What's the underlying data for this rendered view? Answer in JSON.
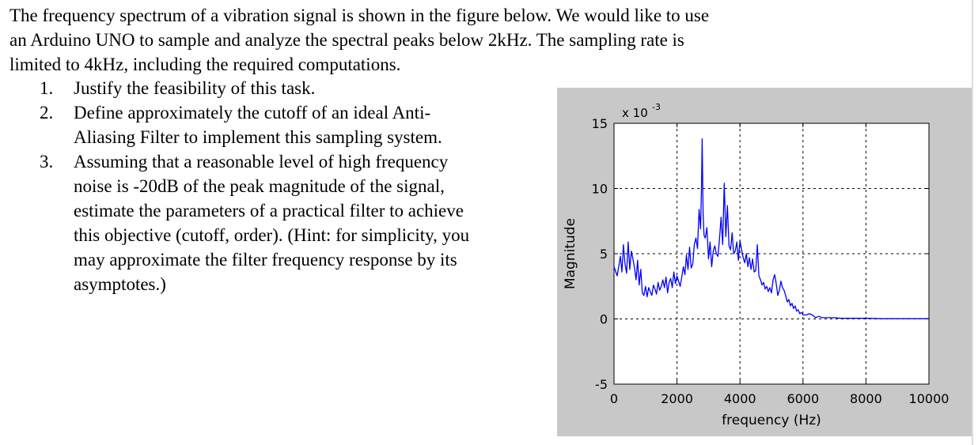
{
  "intro_lines": [
    "The frequency spectrum of a vibration signal is shown in the figure below. We would like to use",
    "an Arduino UNO to sample and analyze the spectral peaks below 2kHz. The sampling rate is",
    "limited to 4kHz, including the required computations."
  ],
  "questions": [
    {
      "number": "1.",
      "lines": [
        "Justify the feasibility of this task."
      ]
    },
    {
      "number": "2.",
      "lines": [
        "Define approximately the cutoff of an ideal Anti-",
        "Aliasing Filter to implement this sampling system."
      ]
    },
    {
      "number": "3.",
      "lines": [
        "Assuming that a reasonable level of high frequency",
        "noise is -20dB of the peak magnitude of the signal,",
        "estimate the parameters of a practical filter to achieve",
        "this objective (cutoff, order). (Hint: for simplicity, you",
        "may approximate the filter frequency response by its",
        "asymptotes.)"
      ]
    }
  ],
  "chart_data": {
    "type": "line",
    "xlabel": "frequency (Hz)",
    "ylabel": "Magnitude",
    "exponent_label_base": "x 10",
    "exponent_label_power": "-3",
    "xlim": [
      0,
      10000
    ],
    "ylim": [
      -5,
      15
    ],
    "xticks": [
      0,
      2000,
      4000,
      6000,
      8000,
      10000
    ],
    "xtick_labels": [
      "0",
      "2000",
      "4000",
      "6000",
      "8000",
      "10000"
    ],
    "yticks": [
      -5,
      0,
      5,
      10,
      15
    ],
    "ytick_labels": [
      "-5",
      "0",
      "5",
      "10",
      "15"
    ],
    "grid": "dashed",
    "line_color": "#0000ff",
    "series": [
      {
        "x": [
          0,
          100,
          200,
          250,
          300,
          350,
          400,
          450,
          500,
          550,
          600,
          650,
          700,
          750,
          800,
          850,
          900,
          950,
          1000,
          1050,
          1100,
          1150,
          1200,
          1250,
          1300,
          1350,
          1400,
          1450,
          1500,
          1550,
          1600,
          1650,
          1700,
          1750,
          1800,
          1850,
          1900,
          1950,
          2000,
          2050,
          2100,
          2150,
          2200,
          2250,
          2300,
          2350,
          2400,
          2450,
          2500,
          2550,
          2600,
          2650,
          2700,
          2750,
          2780,
          2800,
          2830,
          2860,
          2900,
          2950,
          3000,
          3050,
          3100,
          3150,
          3200,
          3250,
          3300,
          3350,
          3400,
          3450,
          3500,
          3550,
          3600,
          3650,
          3700,
          3750,
          3800,
          3850,
          3900,
          3950,
          4000,
          4050,
          4100,
          4150,
          4200,
          4250,
          4300,
          4350,
          4400,
          4450,
          4500,
          4550,
          4600,
          4650,
          4700,
          4750,
          4800,
          4850,
          4900,
          4950,
          5000,
          5050,
          5100,
          5150,
          5200,
          5250,
          5300,
          5350,
          5400,
          5450,
          5500,
          5550,
          5600,
          5650,
          5700,
          5750,
          5800,
          5850,
          5900,
          5950,
          6000,
          6100,
          6200,
          6300,
          6400,
          6500,
          6600,
          6800,
          7000,
          7200,
          7400,
          7600,
          7800,
          8000,
          8500,
          9000,
          9500,
          10000
        ],
        "y": [
          4.0,
          3.3,
          4.8,
          3.6,
          5.7,
          4.2,
          3.5,
          5.9,
          3.8,
          5.2,
          4.6,
          3.9,
          3.0,
          4.5,
          2.6,
          3.8,
          2.0,
          1.8,
          2.5,
          1.7,
          2.4,
          2.1,
          1.8,
          2.6,
          2.3,
          1.9,
          2.8,
          2.2,
          2.5,
          3.0,
          2.4,
          3.2,
          2.0,
          2.8,
          3.1,
          2.4,
          3.6,
          2.7,
          3.3,
          2.9,
          2.5,
          3.2,
          4.0,
          3.4,
          4.9,
          3.8,
          5.5,
          3.9,
          4.2,
          5.7,
          6.2,
          5.4,
          8.4,
          6.9,
          10.2,
          13.8,
          8.0,
          6.4,
          6.2,
          7.0,
          4.6,
          5.9,
          4.0,
          5.2,
          5.6,
          5.0,
          4.8,
          6.1,
          7.8,
          5.7,
          10.4,
          6.3,
          8.7,
          5.6,
          5.3,
          6.6,
          5.0,
          5.2,
          5.9,
          4.5,
          6.0,
          5.3,
          4.7,
          4.3,
          5.0,
          4.0,
          4.7,
          3.8,
          4.6,
          3.6,
          3.7,
          5.7,
          3.3,
          3.0,
          2.6,
          2.8,
          2.3,
          2.5,
          2.1,
          2.4,
          2.0,
          3.0,
          3.4,
          2.7,
          1.8,
          2.2,
          2.9,
          2.4,
          2.2,
          1.8,
          1.3,
          1.5,
          1.0,
          1.2,
          0.8,
          1.0,
          0.6,
          0.7,
          0.4,
          0.5,
          0.3,
          0.3,
          0.4,
          0.3,
          0.1,
          0.2,
          0.1,
          0.1,
          0.1,
          0.05,
          0.05,
          0.05,
          0.05,
          0.05,
          0.02,
          0.02,
          0.02,
          0.02
        ]
      }
    ]
  }
}
